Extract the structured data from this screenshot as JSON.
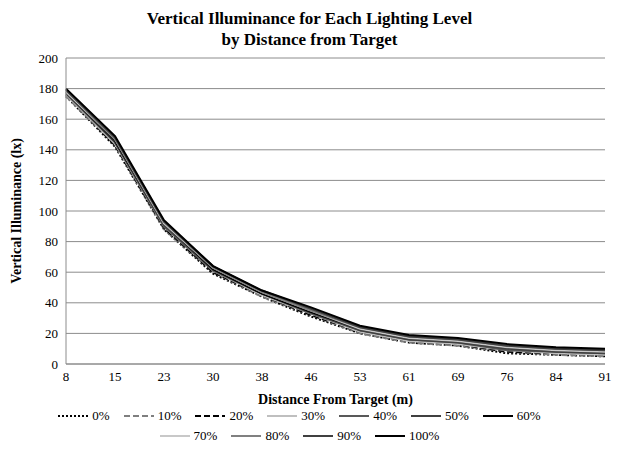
{
  "chart_data": {
    "type": "line",
    "title": "Vertical Illuminance for Each Lighting Level\nby Distance from Target",
    "x_label": "Distance From Target (m)",
    "y_label": "Vertical Illuminance (lx)",
    "categories": [
      "8",
      "15",
      "23",
      "30",
      "38",
      "46",
      "53",
      "61",
      "69",
      "76",
      "84",
      "91"
    ],
    "ylim": [
      0,
      200
    ],
    "yticks": [
      0,
      20,
      40,
      60,
      80,
      100,
      120,
      140,
      160,
      180,
      200
    ],
    "grid": true,
    "legend": "bottom",
    "series": [
      {
        "name": "0%",
        "color": "#000000",
        "line_style": "dotted",
        "values": [
          175,
          142,
          88,
          59,
          44,
          31,
          20,
          14,
          12,
          7,
          6,
          5
        ]
      },
      {
        "name": "10%",
        "color": "#7f7f7f",
        "line_style": "dashed",
        "values": [
          175,
          143,
          88,
          60,
          44,
          32,
          20,
          14,
          12,
          8,
          6,
          5
        ]
      },
      {
        "name": "20%",
        "color": "#000000",
        "line_style": "dashed",
        "values": [
          176,
          143,
          89,
          60,
          45,
          32,
          21,
          15,
          13,
          8,
          7,
          6
        ]
      },
      {
        "name": "30%",
        "color": "#bfbfbf",
        "line_style": "solid",
        "values": [
          176,
          144,
          90,
          61,
          45,
          33,
          21,
          15,
          13,
          9,
          7,
          6
        ]
      },
      {
        "name": "40%",
        "color": "#595959",
        "line_style": "solid",
        "values": [
          177,
          145,
          90,
          61,
          46,
          33,
          22,
          16,
          14,
          9,
          8,
          7
        ]
      },
      {
        "name": "50%",
        "color": "#404040",
        "line_style": "solid",
        "values": [
          177,
          145,
          91,
          62,
          46,
          34,
          22,
          16,
          14,
          10,
          8,
          7
        ]
      },
      {
        "name": "60%",
        "color": "#000000",
        "line_style": "solid",
        "values": [
          178,
          146,
          92,
          62,
          46,
          34,
          23,
          17,
          15,
          11,
          9,
          8
        ]
      },
      {
        "name": "70%",
        "color": "#c8c8c8",
        "line_style": "solid",
        "values": [
          178,
          147,
          92,
          63,
          47,
          35,
          23,
          17,
          15,
          11,
          9,
          8
        ]
      },
      {
        "name": "80%",
        "color": "#808080",
        "line_style": "solid",
        "values": [
          179,
          147,
          93,
          63,
          47,
          35,
          24,
          18,
          16,
          12,
          10,
          9
        ]
      },
      {
        "name": "90%",
        "color": "#404040",
        "line_style": "solid",
        "values": [
          179,
          148,
          93,
          64,
          48,
          36,
          24,
          18,
          16,
          12,
          10,
          9
        ]
      },
      {
        "name": "100%",
        "color": "#000000",
        "line_style": "solid",
        "values": [
          180,
          149,
          94,
          64,
          48,
          37,
          25,
          19,
          17,
          13,
          11,
          10
        ]
      }
    ]
  }
}
